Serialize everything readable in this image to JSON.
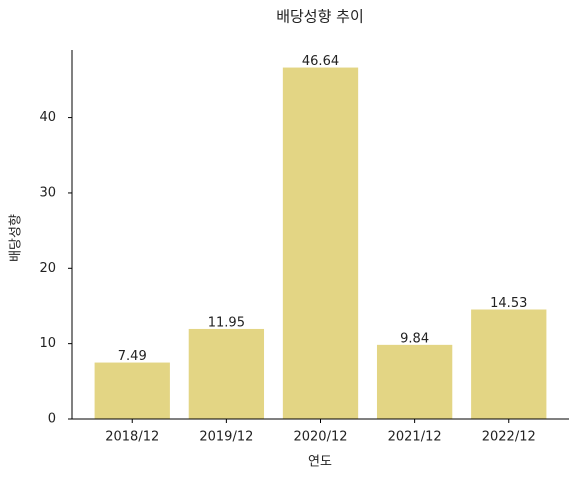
{
  "chart_data": {
    "type": "bar",
    "title": "배당성향 추이",
    "x_label": "연도",
    "y_label": "배당성향",
    "categories": [
      "2018/12",
      "2019/12",
      "2020/12",
      "2021/12",
      "2022/12"
    ],
    "values": [
      7.49,
      11.95,
      46.64,
      9.84,
      14.53
    ],
    "color": "#e3d584",
    "ylim": [
      0,
      48.97
    ],
    "yticks": [
      0,
      10,
      20,
      30,
      40
    ],
    "grid": false,
    "data_labels": true
  }
}
